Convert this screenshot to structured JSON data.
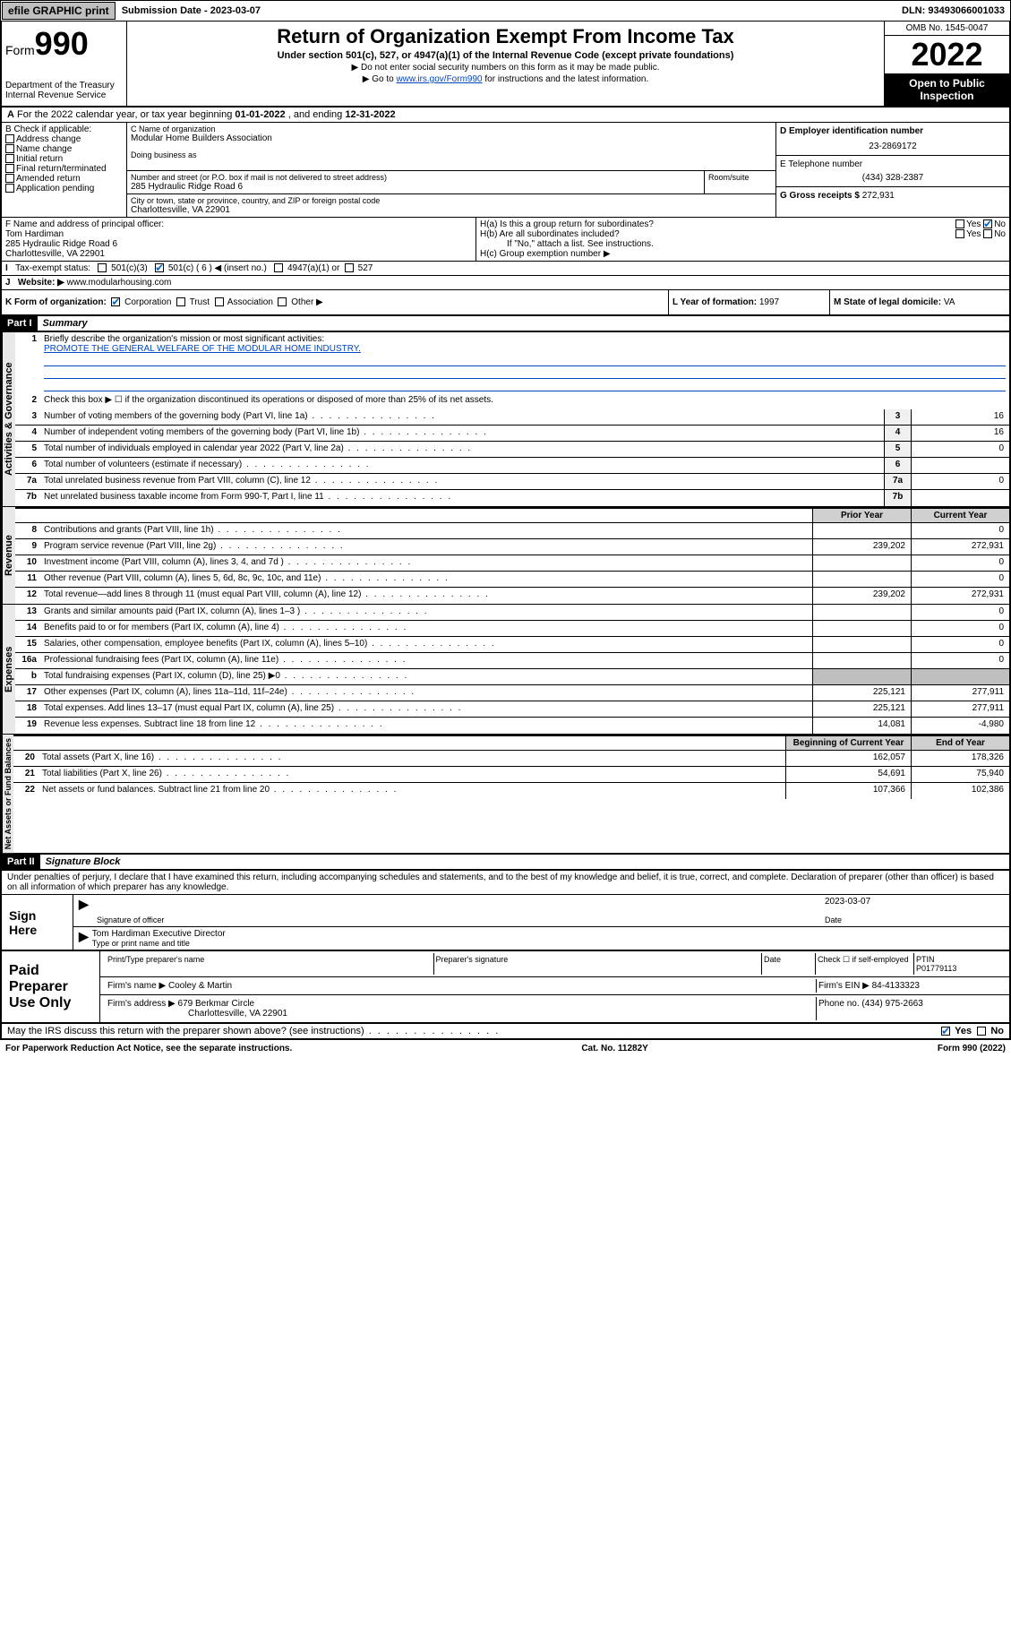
{
  "topbar": {
    "efile": "efile GRAPHIC print",
    "submission_label": "Submission Date - ",
    "submission_date": "2023-03-07",
    "dln_label": "DLN: ",
    "dln": "93493066001033"
  },
  "header": {
    "form_label": "Form",
    "form_no": "990",
    "dept": "Department of the Treasury",
    "irs": "Internal Revenue Service",
    "title": "Return of Organization Exempt From Income Tax",
    "sub": "Under section 501(c), 527, or 4947(a)(1) of the Internal Revenue Code (except private foundations)",
    "note1": "▶ Do not enter social security numbers on this form as it may be made public.",
    "note2_pre": "▶ Go to ",
    "note2_link": "www.irs.gov/Form990",
    "note2_post": " for instructions and the latest information.",
    "omb": "OMB No. 1545-0047",
    "year": "2022",
    "open": "Open to Public Inspection"
  },
  "lineA": {
    "text_pre": "For the 2022 calendar year, or tax year beginning ",
    "begin": "01-01-2022",
    "mid": " , and ending ",
    "end": "12-31-2022"
  },
  "boxB": {
    "label": "B Check if applicable:",
    "items": [
      "Address change",
      "Name change",
      "Initial return",
      "Final return/terminated",
      "Amended return",
      "Application pending"
    ]
  },
  "boxC": {
    "label_name": "C Name of organization",
    "org_name": "Modular Home Builders Association",
    "dba_label": "Doing business as",
    "addr_label": "Number and street (or P.O. box if mail is not delivered to street address)",
    "room_label": "Room/suite",
    "addr": "285 Hydraulic Ridge Road 6",
    "city_label": "City or town, state or province, country, and ZIP or foreign postal code",
    "city": "Charlottesville, VA  22901"
  },
  "boxD": {
    "label": "D Employer identification number",
    "value": "23-2869172"
  },
  "boxE": {
    "label": "E Telephone number",
    "value": "(434) 328-2387"
  },
  "boxG": {
    "label": "G Gross receipts $",
    "value": "272,931"
  },
  "boxF": {
    "label": "F  Name and address of principal officer:",
    "name": "Tom Hardiman",
    "addr1": "285 Hydraulic Ridge Road 6",
    "addr2": "Charlottesville, VA  22901"
  },
  "boxH": {
    "a": "H(a)  Is this a group return for subordinates?",
    "b": "H(b)  Are all subordinates included?",
    "b_note": "If \"No,\" attach a list. See instructions.",
    "c": "H(c)  Group exemption number ▶",
    "yes": "Yes",
    "no": "No"
  },
  "taxexempt": {
    "label": "Tax-exempt status:",
    "c3": "501(c)(3)",
    "c": "501(c) ( 6 ) ◀ (insert no.)",
    "a1": "4947(a)(1) or",
    "s527": "527"
  },
  "website": {
    "label": "Website: ▶",
    "value": "www.modularhousing.com"
  },
  "boxK": {
    "label": "K Form of organization:",
    "corp": "Corporation",
    "trust": "Trust",
    "assoc": "Association",
    "other": "Other ▶"
  },
  "boxL": {
    "label": "L Year of formation:",
    "value": "1997"
  },
  "boxM": {
    "label": "M State of legal domicile:",
    "value": "VA"
  },
  "part1": {
    "hdr": "Part I",
    "title": "Summary"
  },
  "mission": {
    "label": "Briefly describe the organization's mission or most significant activities:",
    "text": "PROMOTE THE GENERAL WELFARE OF THE MODULAR HOME INDUSTRY."
  },
  "line2": "Check this box ▶ ☐ if the organization discontinued its operations or disposed of more than 25% of its net assets.",
  "govRows": [
    {
      "n": "3",
      "t": "Number of voting members of the governing body (Part VI, line 1a)",
      "v": "16"
    },
    {
      "n": "4",
      "t": "Number of independent voting members of the governing body (Part VI, line 1b)",
      "v": "16"
    },
    {
      "n": "5",
      "t": "Total number of individuals employed in calendar year 2022 (Part V, line 2a)",
      "v": "0"
    },
    {
      "n": "6",
      "t": "Total number of volunteers (estimate if necessary)",
      "v": ""
    },
    {
      "n": "7a",
      "t": "Total unrelated business revenue from Part VIII, column (C), line 12",
      "v": "0"
    },
    {
      "n": "7b",
      "t": "Net unrelated business taxable income from Form 990-T, Part I, line 11",
      "v": ""
    }
  ],
  "colHdr": {
    "prior": "Prior Year",
    "current": "Current Year"
  },
  "revRows": [
    {
      "n": "8",
      "t": "Contributions and grants (Part VIII, line 1h)",
      "p": "",
      "c": "0"
    },
    {
      "n": "9",
      "t": "Program service revenue (Part VIII, line 2g)",
      "p": "239,202",
      "c": "272,931"
    },
    {
      "n": "10",
      "t": "Investment income (Part VIII, column (A), lines 3, 4, and 7d )",
      "p": "",
      "c": "0"
    },
    {
      "n": "11",
      "t": "Other revenue (Part VIII, column (A), lines 5, 6d, 8c, 9c, 10c, and 11e)",
      "p": "",
      "c": "0"
    },
    {
      "n": "12",
      "t": "Total revenue—add lines 8 through 11 (must equal Part VIII, column (A), line 12)",
      "p": "239,202",
      "c": "272,931"
    }
  ],
  "expRows": [
    {
      "n": "13",
      "t": "Grants and similar amounts paid (Part IX, column (A), lines 1–3 )",
      "p": "",
      "c": "0"
    },
    {
      "n": "14",
      "t": "Benefits paid to or for members (Part IX, column (A), line 4)",
      "p": "",
      "c": "0"
    },
    {
      "n": "15",
      "t": "Salaries, other compensation, employee benefits (Part IX, column (A), lines 5–10)",
      "p": "",
      "c": "0"
    },
    {
      "n": "16a",
      "t": "Professional fundraising fees (Part IX, column (A), line 11e)",
      "p": "",
      "c": "0"
    },
    {
      "n": "b",
      "t": "Total fundraising expenses (Part IX, column (D), line 25) ▶0",
      "p": "shade",
      "c": "shade"
    },
    {
      "n": "17",
      "t": "Other expenses (Part IX, column (A), lines 11a–11d, 11f–24e)",
      "p": "225,121",
      "c": "277,911"
    },
    {
      "n": "18",
      "t": "Total expenses. Add lines 13–17 (must equal Part IX, column (A), line 25)",
      "p": "225,121",
      "c": "277,911"
    },
    {
      "n": "19",
      "t": "Revenue less expenses. Subtract line 18 from line 12",
      "p": "14,081",
      "c": "-4,980"
    }
  ],
  "balHdr": {
    "begin": "Beginning of Current Year",
    "end": "End of Year"
  },
  "balRows": [
    {
      "n": "20",
      "t": "Total assets (Part X, line 16)",
      "p": "162,057",
      "c": "178,326"
    },
    {
      "n": "21",
      "t": "Total liabilities (Part X, line 26)",
      "p": "54,691",
      "c": "75,940"
    },
    {
      "n": "22",
      "t": "Net assets or fund balances. Subtract line 21 from line 20",
      "p": "107,366",
      "c": "102,386"
    }
  ],
  "part2": {
    "hdr": "Part II",
    "title": "Signature Block"
  },
  "penalties": "Under penalties of perjury, I declare that I have examined this return, including accompanying schedules and statements, and to the best of my knowledge and belief, it is true, correct, and complete. Declaration of preparer (other than officer) is based on all information of which preparer has any knowledge.",
  "sign": {
    "here": "Sign Here",
    "sig_label": "Signature of officer",
    "date_label": "Date",
    "date": "2023-03-07",
    "name_label": "Type or print name and title",
    "name": "Tom Hardiman  Executive Director"
  },
  "paid": {
    "label": "Paid Preparer Use Only",
    "cols": [
      "Print/Type preparer's name",
      "Preparer's signature",
      "Date"
    ],
    "check_label": "Check ☐ if self-employed",
    "ptin_label": "PTIN",
    "ptin": "P01779113",
    "firm_name_label": "Firm's name   ▶",
    "firm_name": "Cooley & Martin",
    "firm_ein_label": "Firm's EIN ▶",
    "firm_ein": "84-4133323",
    "firm_addr_label": "Firm's address ▶",
    "firm_addr1": "679 Berkmar Circle",
    "firm_addr2": "Charlottesville, VA  22901",
    "phone_label": "Phone no.",
    "phone": "(434) 975-2663"
  },
  "discuss": {
    "text": "May the IRS discuss this return with the preparer shown above? (see instructions)",
    "yes": "Yes",
    "no": "No"
  },
  "footer": {
    "left": "For Paperwork Reduction Act Notice, see the separate instructions.",
    "mid": "Cat. No. 11282Y",
    "right": "Form 990 (2022)"
  },
  "sideLabels": {
    "gov": "Activities & Governance",
    "rev": "Revenue",
    "exp": "Expenses",
    "bal": "Net Assets or Fund Balances"
  }
}
